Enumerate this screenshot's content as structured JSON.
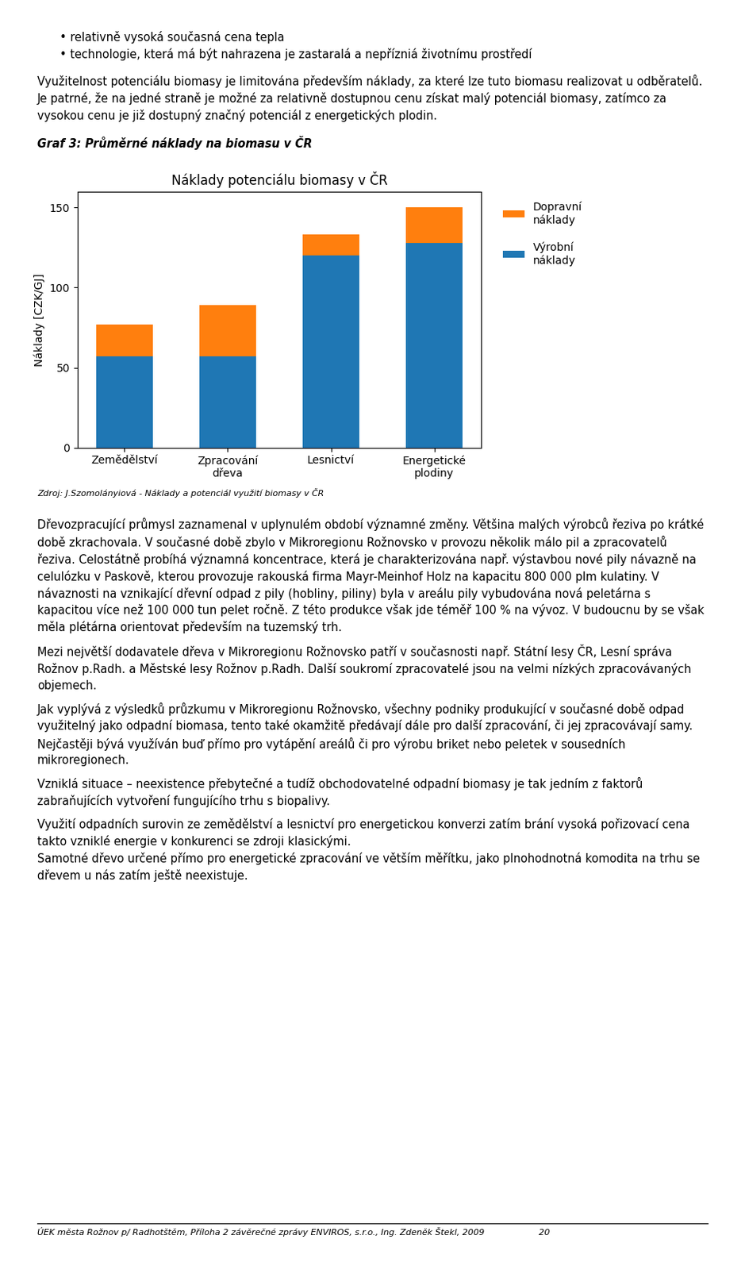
{
  "chart_data": {
    "type": "bar",
    "stacked": true,
    "title": "Náklady potenciálu biomasy v ČR",
    "ylabel": "Náklady [CZK/GJ]",
    "categories": [
      "Zemědělství",
      "Zpracování\ndřeva",
      "Lesnictví",
      "Energetické\nplodiny"
    ],
    "series": [
      {
        "name": "Výrobní\nnáklady",
        "values": [
          57,
          57,
          120,
          128
        ]
      },
      {
        "name": "Dopravní\nnáklady",
        "values": [
          20,
          32,
          13,
          22
        ]
      }
    ],
    "ylim": [
      0,
      160
    ],
    "yticks": [
      0,
      50,
      100,
      150
    ],
    "legend": "upper left",
    "annotations": [
      "• relativně vysoká současná cena tepla",
      "• technologie, která má být nahrazena je zastaralá a nepřízniá životnímu prostředí",
      "Využitelnost potenciálu biomasy je limitována především náklady, za které lze tuto biomasu realizovat u odběratelů. Je patrné, že na jedné straně je možné za relativně dostupnou cenu získat malý potenciál biomasy, zatímco za vysokou cenu je již dostupný značný potenciál z energetických plodin.",
      "Graf 3: Průměrné náklady na biomasu v ČR",
      "Zdroj: J.Szomolányiová - Náklady a potenciál využití biomasy v ČR",
      "Dřevozpracující průmysl zaznamenal v uplynulém období významné změny. Většina malých výrobců řeziva po krátké době zkrachovala. V současné době zbylo v Mikroregionu Rožnovsko v provozu několik málo pil a zpracovatelů řeziva. Celostátně probíhá významná koncentrace, která je charakterizována např. výstavbou nové pily návazně na celulózku v Paskově, kterou provozuje rakouská firma Mayr-Meinhof Holz na kapacitu 800 000 plm kulatiny. V návaznosti na vznikající dřevní odpad z pily (hobliny, piliny) byla v areálu pily vybudována nová peletárna s kapacitou více než 100 000 tun pelet ročně. Z této produkce však jde téměř 100 % na vývoz. V budoucnu by se však měla plétárna orientovat především na tuzemský trh.",
      "Mezi největší dodavatele dřeva v Mikroregionu Rožnovsko patří v současnosti např. Státní lesy ČR, Lesní správa Rožnov p.Radh. a Městské lesy Rožnov p.Radh. Další soukromí zpracovatelé jsou na velmi nízkých zpracovávaných objemech.",
      "Jak vyplývá z výsledků průzkumu v Mikroregionu Rožnovsko, všechny podniky produkující v současné době odpad využitelný jako odpadní biomasa, tento také okamžitě předávají dále pro další zpracování, či jej zpracovávají samy. Nejčastěji bývá využíván buď přímo pro vytápění areálů či pro výrobu briket nebo peletek v sousedních mikroregionech.",
      "Vzniklá situace – neexistence přebytečné a tudíž obchodovatelné odpadní biomasy je tak jedním z faktorů zabraňujících vytvoření fungujícího trhu s biopalivy.",
      "Využití odpadních surovin ze zemědělství a lesnictví pro energetickou konverzi zatím brání vysoká pořizovací cena takto vzniklé energie v konkurenci se zdroji klasickými.\nSamotné dřevo určené přímo pro energetické zpracování ve větším měřítku, jako plnohodnotná komodita na trhu se dřevem u nás zatím ještě neexistuje.",
      "ÚEK města Rožnov p/ Radhotštěm, Příloha 2 závěrečné zprávy ENVIROS, s.r.o., Ing. Zdeněk Štekl, 2009                    20"
    ]
  }
}
